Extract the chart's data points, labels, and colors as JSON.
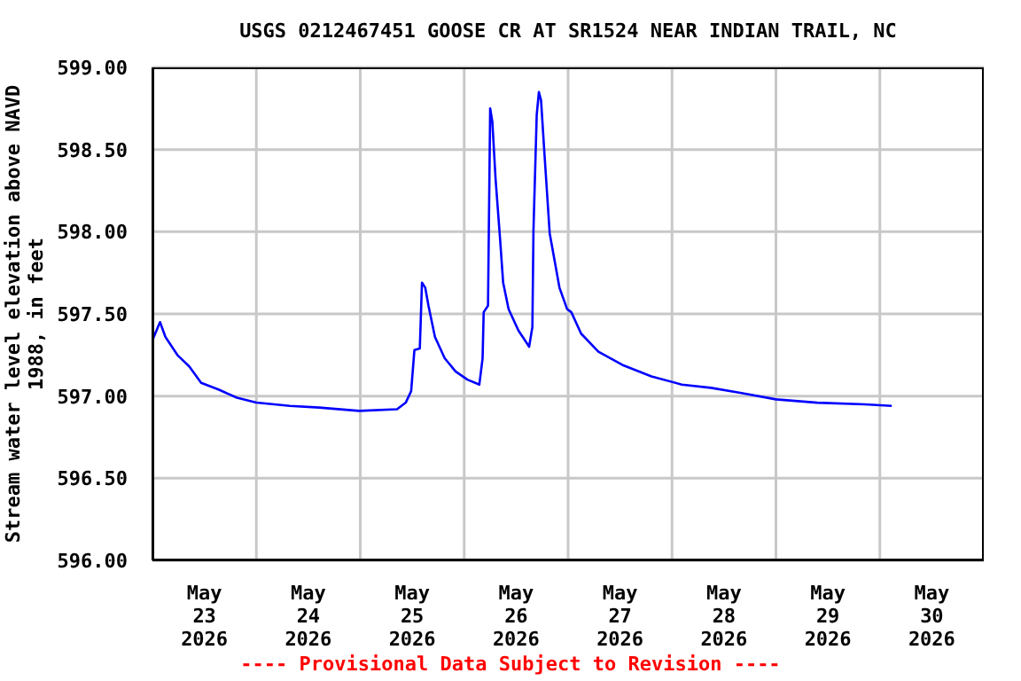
{
  "chart_data": {
    "type": "line",
    "title": "USGS 0212467451 GOOSE CR AT SR1524 NEAR INDIAN TRAIL, NC",
    "ylabel": "Stream water level elevation above NAVD\n1988, in feet",
    "annotations": [
      "---- Provisional Data Subject to Revision ----"
    ],
    "x": [
      "2026-05-23T00:00",
      "2026-05-23T01:45",
      "2026-05-23T03:00",
      "2026-05-23T05:45",
      "2026-05-23T08:30",
      "2026-05-23T11:15",
      "2026-05-23T15:15",
      "2026-05-23T19:30",
      "2026-05-24T00:00",
      "2026-05-24T07:45",
      "2026-05-24T14:30",
      "2026-05-24T23:45",
      "2026-05-25T08:30",
      "2026-05-25T10:30",
      "2026-05-25T11:45",
      "2026-05-25T12:30",
      "2026-05-25T13:45",
      "2026-05-25T14:15",
      "2026-05-25T15:00",
      "2026-05-25T15:45",
      "2026-05-25T17:15",
      "2026-05-25T19:30",
      "2026-05-25T22:00",
      "2026-05-26T00:45",
      "2026-05-26T03:30",
      "2026-05-26T04:15",
      "2026-05-26T04:30",
      "2026-05-26T05:30",
      "2026-05-26T06:00",
      "2026-05-26T06:30",
      "2026-05-26T07:15",
      "2026-05-26T08:15",
      "2026-05-26T09:00",
      "2026-05-26T10:15",
      "2026-05-26T12:30",
      "2026-05-26T15:00",
      "2026-05-26T15:45",
      "2026-05-26T16:00",
      "2026-05-26T16:45",
      "2026-05-26T17:15",
      "2026-05-26T17:45",
      "2026-05-26T18:30",
      "2026-05-26T19:45",
      "2026-05-26T22:00",
      "2026-05-26T23:45",
      "2026-05-27T00:45",
      "2026-05-27T03:00",
      "2026-05-27T07:00",
      "2026-05-27T12:30",
      "2026-05-27T19:15",
      "2026-05-28T02:15",
      "2026-05-28T09:00",
      "2026-05-28T15:45",
      "2026-05-29T00:00",
      "2026-05-29T09:30",
      "2026-05-29T20:30",
      "2026-05-30T02:45"
    ],
    "series": [
      {
        "color": "#0000ff",
        "values": [
          597.34,
          597.45,
          597.36,
          597.25,
          597.18,
          597.08,
          597.04,
          596.99,
          596.96,
          596.94,
          596.93,
          596.91,
          596.92,
          596.96,
          597.03,
          597.28,
          597.29,
          597.69,
          597.66,
          597.55,
          597.36,
          597.23,
          597.15,
          597.1,
          597.07,
          597.23,
          597.51,
          597.55,
          598.75,
          598.67,
          598.32,
          597.97,
          597.69,
          597.53,
          597.4,
          597.3,
          597.42,
          598.01,
          598.71,
          598.85,
          598.8,
          598.49,
          597.99,
          597.66,
          597.53,
          597.51,
          597.38,
          597.27,
          597.19,
          597.12,
          597.07,
          597.05,
          597.02,
          596.98,
          596.96,
          596.95,
          596.94
        ]
      }
    ],
    "xlim": [
      "2026-05-23T00:00",
      "2026-05-31T00:00"
    ],
    "xticks": [
      {
        "value": "2026-05-23T12:00",
        "label": "May\n23\n2026"
      },
      {
        "value": "2026-05-24T00:00",
        "label": null
      },
      {
        "value": "2026-05-24T12:00",
        "label": "May\n24\n2026"
      },
      {
        "value": "2026-05-25T00:00",
        "label": null
      },
      {
        "value": "2026-05-25T12:00",
        "label": "May\n25\n2026"
      },
      {
        "value": "2026-05-26T00:00",
        "label": null
      },
      {
        "value": "2026-05-26T12:00",
        "label": "May\n26\n2026"
      },
      {
        "value": "2026-05-27T00:00",
        "label": null
      },
      {
        "value": "2026-05-27T12:00",
        "label": "May\n27\n2026"
      },
      {
        "value": "2026-05-28T00:00",
        "label": null
      },
      {
        "value": "2026-05-28T12:00",
        "label": "May\n28\n2026"
      },
      {
        "value": "2026-05-29T00:00",
        "label": null
      },
      {
        "value": "2026-05-29T12:00",
        "label": "May\n29\n2026"
      },
      {
        "value": "2026-05-30T00:00",
        "label": null
      },
      {
        "value": "2026-05-30T12:00",
        "label": "May\n30\n2026"
      }
    ],
    "ylim": [
      596,
      599
    ],
    "yticks": [
      {
        "value": 596,
        "label": "596.00"
      },
      {
        "value": 596.5,
        "label": "596.50"
      },
      {
        "value": 597,
        "label": "597.00"
      },
      {
        "value": 597.5,
        "label": "597.50"
      },
      {
        "value": 598,
        "label": "598.00"
      },
      {
        "value": 598.5,
        "label": "598.50"
      },
      {
        "value": 599,
        "label": "599.00"
      }
    ],
    "grid": true,
    "legend": false,
    "marker": "none",
    "line_style": "solid"
  }
}
